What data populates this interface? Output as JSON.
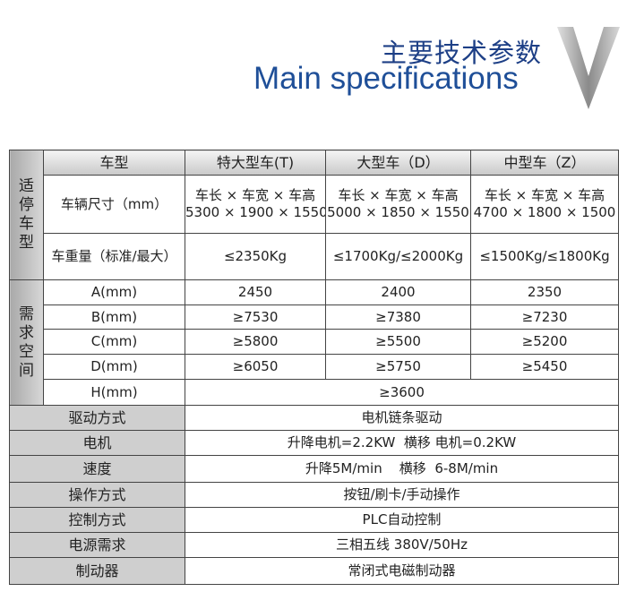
{
  "header": {
    "title_cn": "主要技术参数",
    "title_en": "Main specifications",
    "chevron_icon": "chevron-down-icon",
    "title_color": "#1f4f98"
  },
  "table": {
    "header": {
      "label": "车型",
      "cols": [
        "特大型车(T)",
        "大型车（D）",
        "中型车（Z）"
      ]
    },
    "group1": {
      "label": "适\n停\n车\n型",
      "rows": [
        {
          "label": "车辆尺寸（mm）",
          "values": [
            [
              "车长 × 车宽 × 车高",
              "5300 × 1900 × 1550"
            ],
            [
              "车长 × 车宽 × 车高",
              "5000 × 1850 × 1550"
            ],
            [
              "车长 × 车宽 × 车高",
              "4700 × 1800 × 1500"
            ]
          ]
        },
        {
          "label": "车重量（标准/最大）",
          "values": [
            "≤2350Kg",
            "≤1700Kg/≤2000Kg",
            "≤1500Kg/≤1800Kg"
          ]
        }
      ]
    },
    "group2": {
      "label": "需\n求\n空\n间",
      "rows": [
        {
          "label": "A(mm)",
          "values": [
            "2450",
            "2400",
            "2350"
          ]
        },
        {
          "label": "B(mm)",
          "values": [
            "≥7530",
            "≥7380",
            "≥7230"
          ]
        },
        {
          "label": "C(mm)",
          "values": [
            "≥5800",
            "≥5500",
            "≥5200"
          ]
        },
        {
          "label": "D(mm)",
          "values": [
            "≥6050",
            "≥5750",
            "≥5450"
          ]
        },
        {
          "label": "H(mm)",
          "value": "≥3600"
        }
      ]
    },
    "specs": [
      {
        "label": "驱动方式",
        "value": "电机链条驱动"
      },
      {
        "label": "电机",
        "value": "升降电机=2.2KW  横移 电机=0.2KW"
      },
      {
        "label": "速度",
        "value": "升降5M/min    横移  6-8M/min"
      },
      {
        "label": "操作方式",
        "value": "按钮/刷卡/手动操作"
      },
      {
        "label": "控制方式",
        "value": "PLC自动控制"
      },
      {
        "label": "电源需求",
        "value": "三相五线 380V/50Hz"
      },
      {
        "label": "制动器",
        "value": "常闭式电磁制动器"
      }
    ]
  }
}
